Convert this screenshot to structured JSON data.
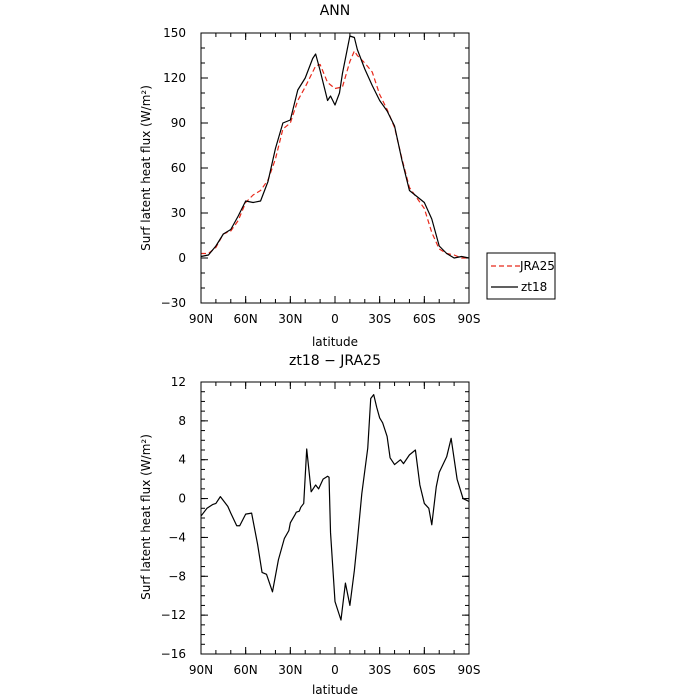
{
  "chart_data": [
    {
      "type": "line",
      "title": "ANN",
      "xlabel": "latitude",
      "ylabel": "Surf latent heat flux (W/m²)",
      "xlim": [
        90,
        -90
      ],
      "ylim": [
        -30,
        150
      ],
      "xticks": [
        90,
        60,
        30,
        0,
        -30,
        -60,
        -90
      ],
      "xtick_labels": [
        "90N",
        "60N",
        "30N",
        "0",
        "30S",
        "60S",
        "90S"
      ],
      "yticks": [
        -30,
        0,
        30,
        60,
        90,
        120,
        150
      ],
      "ytick_labels": [
        "−30",
        "0",
        "30",
        "60",
        "90",
        "120",
        "150"
      ],
      "grid": false,
      "legend_position": "right",
      "series": [
        {
          "name": "JRA25",
          "color": "#e8291b",
          "style": "dashed",
          "x": [
            90,
            85,
            80,
            75,
            70,
            65,
            60,
            55,
            50,
            45,
            40,
            35,
            30,
            25,
            20,
            15,
            13,
            10,
            5,
            0,
            -5,
            -10,
            -13,
            -15,
            -20,
            -25,
            -30,
            -35,
            -40,
            -45,
            -50,
            -55,
            -60,
            -65,
            -70,
            -75,
            -80,
            -85,
            -90
          ],
          "y": [
            3,
            3,
            7,
            16,
            18,
            25,
            37,
            42,
            45,
            52,
            66,
            86,
            90,
            105,
            114,
            124,
            128,
            129,
            117,
            113,
            114,
            131,
            138,
            135,
            130,
            124,
            109,
            99,
            87,
            66,
            47,
            40,
            33,
            17,
            6,
            3,
            2,
            0,
            0
          ]
        },
        {
          "name": "zt18",
          "color": "#000000",
          "style": "solid",
          "x": [
            90,
            85,
            80,
            75,
            70,
            65,
            60,
            55,
            50,
            45,
            40,
            35,
            30,
            25,
            20,
            15,
            13,
            10,
            7,
            5,
            3,
            0,
            -3,
            -5,
            -8,
            -10,
            -13,
            -15,
            -20,
            -25,
            -30,
            -35,
            -40,
            -45,
            -50,
            -55,
            -60,
            -65,
            -70,
            -75,
            -80,
            -85,
            -90
          ],
          "y": [
            1,
            2,
            8,
            16,
            19,
            28,
            38,
            37,
            38,
            51,
            73,
            90,
            92,
            112,
            120,
            133,
            136,
            125,
            113,
            105,
            108,
            102,
            110,
            123,
            138,
            148,
            147,
            139,
            126,
            115,
            105,
            98,
            88,
            65,
            45,
            41,
            37,
            26,
            8,
            3,
            0,
            1,
            0
          ]
        }
      ]
    },
    {
      "type": "line",
      "title": "zt18 − JRA25",
      "xlabel": "latitude",
      "ylabel": "Surf latent heat flux (W/m²)",
      "xlim": [
        90,
        -90
      ],
      "ylim": [
        -16,
        12
      ],
      "xticks": [
        90,
        60,
        30,
        0,
        -30,
        -60,
        -90
      ],
      "xtick_labels": [
        "90N",
        "60N",
        "30N",
        "0",
        "30S",
        "60S",
        "90S"
      ],
      "yticks": [
        -16,
        -12,
        -8,
        -4,
        0,
        4,
        8,
        12
      ],
      "ytick_labels": [
        "−16",
        "−12",
        "−8",
        "−4",
        "0",
        "4",
        "8",
        "12"
      ],
      "grid": false,
      "series": [
        {
          "color": "#000000",
          "style": "solid",
          "x": [
            90,
            86,
            82,
            80,
            77,
            72,
            70,
            66,
            64,
            60,
            56,
            52,
            49,
            46,
            42,
            38,
            34,
            31,
            30,
            27,
            26,
            24,
            23,
            21,
            19,
            16,
            13,
            11,
            8,
            6,
            5,
            4,
            3,
            0,
            -4,
            -7,
            -10,
            -13,
            -15,
            -18,
            -22,
            -24,
            -26,
            -28,
            -30,
            -32,
            -35,
            -37,
            -40,
            -44,
            -46,
            -50,
            -54,
            -57,
            -60,
            -63,
            -65,
            -68,
            -70,
            -75,
            -78,
            -82,
            -86,
            -90
          ],
          "y": [
            -1.8,
            -1.0,
            -0.6,
            -0.5,
            0.2,
            -0.8,
            -1.5,
            -2.8,
            -2.8,
            -1.6,
            -1.5,
            -4.7,
            -7.6,
            -7.8,
            -9.6,
            -6.3,
            -4.1,
            -3.3,
            -2.5,
            -1.7,
            -1.4,
            -1.3,
            -0.9,
            -0.5,
            5.1,
            0.7,
            1.4,
            1.0,
            2.0,
            2.2,
            2.3,
            2.2,
            -3.5,
            -10.6,
            -12.5,
            -8.7,
            -11.0,
            -7.4,
            -4.4,
            0.5,
            5.2,
            10.3,
            10.7,
            9.4,
            8.3,
            7.8,
            6.4,
            4.2,
            3.5,
            4.0,
            3.6,
            4.5,
            5.0,
            1.4,
            -0.5,
            -1.0,
            -2.7,
            1.2,
            2.7,
            4.3,
            6.2,
            2.0,
            0.0,
            -0.3
          ]
        }
      ]
    }
  ]
}
